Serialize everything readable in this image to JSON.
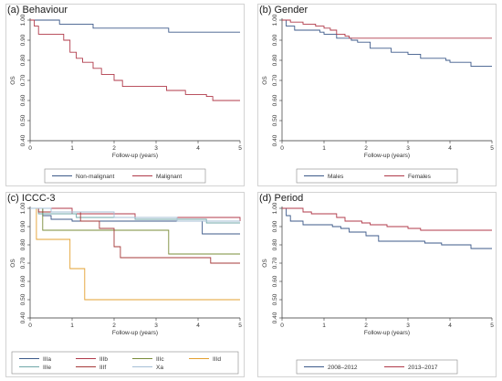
{
  "colors": {
    "navy": "#3d5a8a",
    "maroon": "#b03a4a",
    "olive": "#7a8c3a",
    "orange": "#e3a030",
    "teal": "#6fa7a8",
    "brown": "#a53a3a",
    "lightblue": "#a6bfd6"
  },
  "chart_data": [
    {
      "type": "line",
      "title": "(a) Behaviour",
      "xlabel": "Follow-up (years)",
      "ylabel": "OS",
      "xlim": [
        0,
        5
      ],
      "ylim": [
        0.4,
        1.0
      ],
      "xticks": [
        "0",
        "1",
        "2",
        "3",
        "4",
        "5"
      ],
      "yticks": [
        "0.40",
        "0.50",
        "0.60",
        "0.70",
        "0.80",
        "0.90",
        "1.00"
      ],
      "legend": "bottom",
      "series": [
        {
          "name": "Non-malignant",
          "color": "navy",
          "points": [
            [
              0,
              1.0
            ],
            [
              0.7,
              0.98
            ],
            [
              1.5,
              0.96
            ],
            [
              3.3,
              0.94
            ],
            [
              5,
              0.94
            ]
          ]
        },
        {
          "name": "Malignant",
          "color": "maroon",
          "points": [
            [
              0,
              1.0
            ],
            [
              0.1,
              0.97
            ],
            [
              0.2,
              0.93
            ],
            [
              0.8,
              0.9
            ],
            [
              0.95,
              0.84
            ],
            [
              1.1,
              0.81
            ],
            [
              1.25,
              0.79
            ],
            [
              1.5,
              0.76
            ],
            [
              1.7,
              0.73
            ],
            [
              2.0,
              0.7
            ],
            [
              2.2,
              0.67
            ],
            [
              3.25,
              0.65
            ],
            [
              3.7,
              0.63
            ],
            [
              4.2,
              0.62
            ],
            [
              4.35,
              0.6
            ],
            [
              5,
              0.6
            ]
          ]
        }
      ]
    },
    {
      "type": "line",
      "title": "(b) Gender",
      "xlabel": "Follow-up (years)",
      "ylabel": "OS",
      "xlim": [
        0,
        5
      ],
      "ylim": [
        0.4,
        1.0
      ],
      "xticks": [
        "0",
        "1",
        "2",
        "3",
        "4",
        "5"
      ],
      "yticks": [
        "0.40",
        "0.50",
        "0.60",
        "0.70",
        "0.80",
        "0.90",
        "1.00"
      ],
      "legend": "bottom",
      "series": [
        {
          "name": "Males",
          "color": "navy",
          "points": [
            [
              0,
              1.0
            ],
            [
              0.1,
              0.97
            ],
            [
              0.3,
              0.95
            ],
            [
              0.9,
              0.94
            ],
            [
              1.0,
              0.93
            ],
            [
              1.3,
              0.91
            ],
            [
              1.65,
              0.9
            ],
            [
              1.8,
              0.89
            ],
            [
              2.1,
              0.86
            ],
            [
              2.6,
              0.84
            ],
            [
              3.0,
              0.83
            ],
            [
              3.3,
              0.81
            ],
            [
              3.9,
              0.8
            ],
            [
              4.0,
              0.79
            ],
            [
              4.5,
              0.77
            ],
            [
              5,
              0.77
            ]
          ]
        },
        {
          "name": "Females",
          "color": "maroon",
          "points": [
            [
              0,
              1.0
            ],
            [
              0.2,
              0.99
            ],
            [
              0.5,
              0.98
            ],
            [
              0.8,
              0.97
            ],
            [
              1.0,
              0.96
            ],
            [
              1.15,
              0.95
            ],
            [
              1.3,
              0.93
            ],
            [
              1.5,
              0.92
            ],
            [
              1.6,
              0.91
            ],
            [
              5,
              0.91
            ]
          ]
        }
      ]
    },
    {
      "type": "line",
      "title": "(c) ICCC-3",
      "xlabel": "Follow-up (years)",
      "ylabel": "OS",
      "xlim": [
        0,
        5
      ],
      "ylim": [
        0.4,
        1.0
      ],
      "xticks": [
        "0",
        "1",
        "2",
        "3",
        "4",
        "5"
      ],
      "yticks": [
        "0.40",
        "0.50",
        "0.60",
        "0.70",
        "0.80",
        "0.90",
        "1.00"
      ],
      "legend": "bottom",
      "series": [
        {
          "name": "IIIa",
          "color": "navy",
          "points": [
            [
              0,
              1.0
            ],
            [
              0.3,
              0.96
            ],
            [
              0.5,
              0.94
            ],
            [
              1.0,
              0.93
            ],
            [
              4.1,
              0.86
            ],
            [
              5,
              0.86
            ]
          ]
        },
        {
          "name": "IIIb",
          "color": "maroon",
          "points": [
            [
              0,
              1.0
            ],
            [
              1.0,
              0.97
            ],
            [
              2.5,
              0.95
            ],
            [
              5,
              0.93
            ]
          ]
        },
        {
          "name": "IIIc",
          "color": "olive",
          "points": [
            [
              0,
              1.0
            ],
            [
              0.3,
              0.88
            ],
            [
              3.3,
              0.75
            ],
            [
              5,
              0.75
            ]
          ]
        },
        {
          "name": "IIId",
          "color": "orange",
          "points": [
            [
              0,
              1.0
            ],
            [
              0.15,
              0.83
            ],
            [
              0.95,
              0.67
            ],
            [
              1.3,
              0.5
            ],
            [
              5,
              0.5
            ]
          ]
        },
        {
          "name": "IIIe",
          "color": "teal",
          "points": [
            [
              0,
              1.0
            ],
            [
              0.2,
              0.97
            ],
            [
              1.1,
              0.95
            ],
            [
              2.5,
              0.94
            ],
            [
              4.2,
              0.92
            ],
            [
              5,
              0.92
            ]
          ]
        },
        {
          "name": "IIIf",
          "color": "brown",
          "points": [
            [
              0,
              1.0
            ],
            [
              0.2,
              0.98
            ],
            [
              1.2,
              0.93
            ],
            [
              1.65,
              0.89
            ],
            [
              2.0,
              0.79
            ],
            [
              2.15,
              0.73
            ],
            [
              4.3,
              0.7
            ],
            [
              5,
              0.7
            ]
          ]
        },
        {
          "name": "Xa",
          "color": "lightblue",
          "points": [
            [
              0,
              1.0
            ],
            [
              0.5,
              0.98
            ],
            [
              2.0,
              0.95
            ],
            [
              3.5,
              0.93
            ],
            [
              5,
              0.93
            ]
          ]
        }
      ]
    },
    {
      "type": "line",
      "title": "(d) Period",
      "xlabel": "Follow-up (years)",
      "ylabel": "OS",
      "xlim": [
        0,
        5
      ],
      "ylim": [
        0.4,
        1.0
      ],
      "xticks": [
        "0",
        "1",
        "2",
        "3",
        "4",
        "5"
      ],
      "yticks": [
        "0.40",
        "0.50",
        "0.60",
        "0.70",
        "0.80",
        "0.90",
        "1.00"
      ],
      "legend": "bottom",
      "series": [
        {
          "name": "2008–2012",
          "color": "navy",
          "points": [
            [
              0,
              1.0
            ],
            [
              0.1,
              0.96
            ],
            [
              0.2,
              0.93
            ],
            [
              0.5,
              0.91
            ],
            [
              1.2,
              0.9
            ],
            [
              1.4,
              0.89
            ],
            [
              1.6,
              0.87
            ],
            [
              2.0,
              0.85
            ],
            [
              2.3,
              0.82
            ],
            [
              3.4,
              0.81
            ],
            [
              3.8,
              0.8
            ],
            [
              4.5,
              0.78
            ],
            [
              5,
              0.78
            ]
          ]
        },
        {
          "name": "2013–2017",
          "color": "maroon",
          "points": [
            [
              0,
              1.0
            ],
            [
              0.5,
              0.98
            ],
            [
              0.7,
              0.97
            ],
            [
              1.3,
              0.95
            ],
            [
              1.5,
              0.93
            ],
            [
              1.9,
              0.92
            ],
            [
              2.1,
              0.91
            ],
            [
              2.5,
              0.9
            ],
            [
              3.0,
              0.89
            ],
            [
              3.3,
              0.88
            ],
            [
              5,
              0.88
            ]
          ]
        }
      ]
    }
  ]
}
